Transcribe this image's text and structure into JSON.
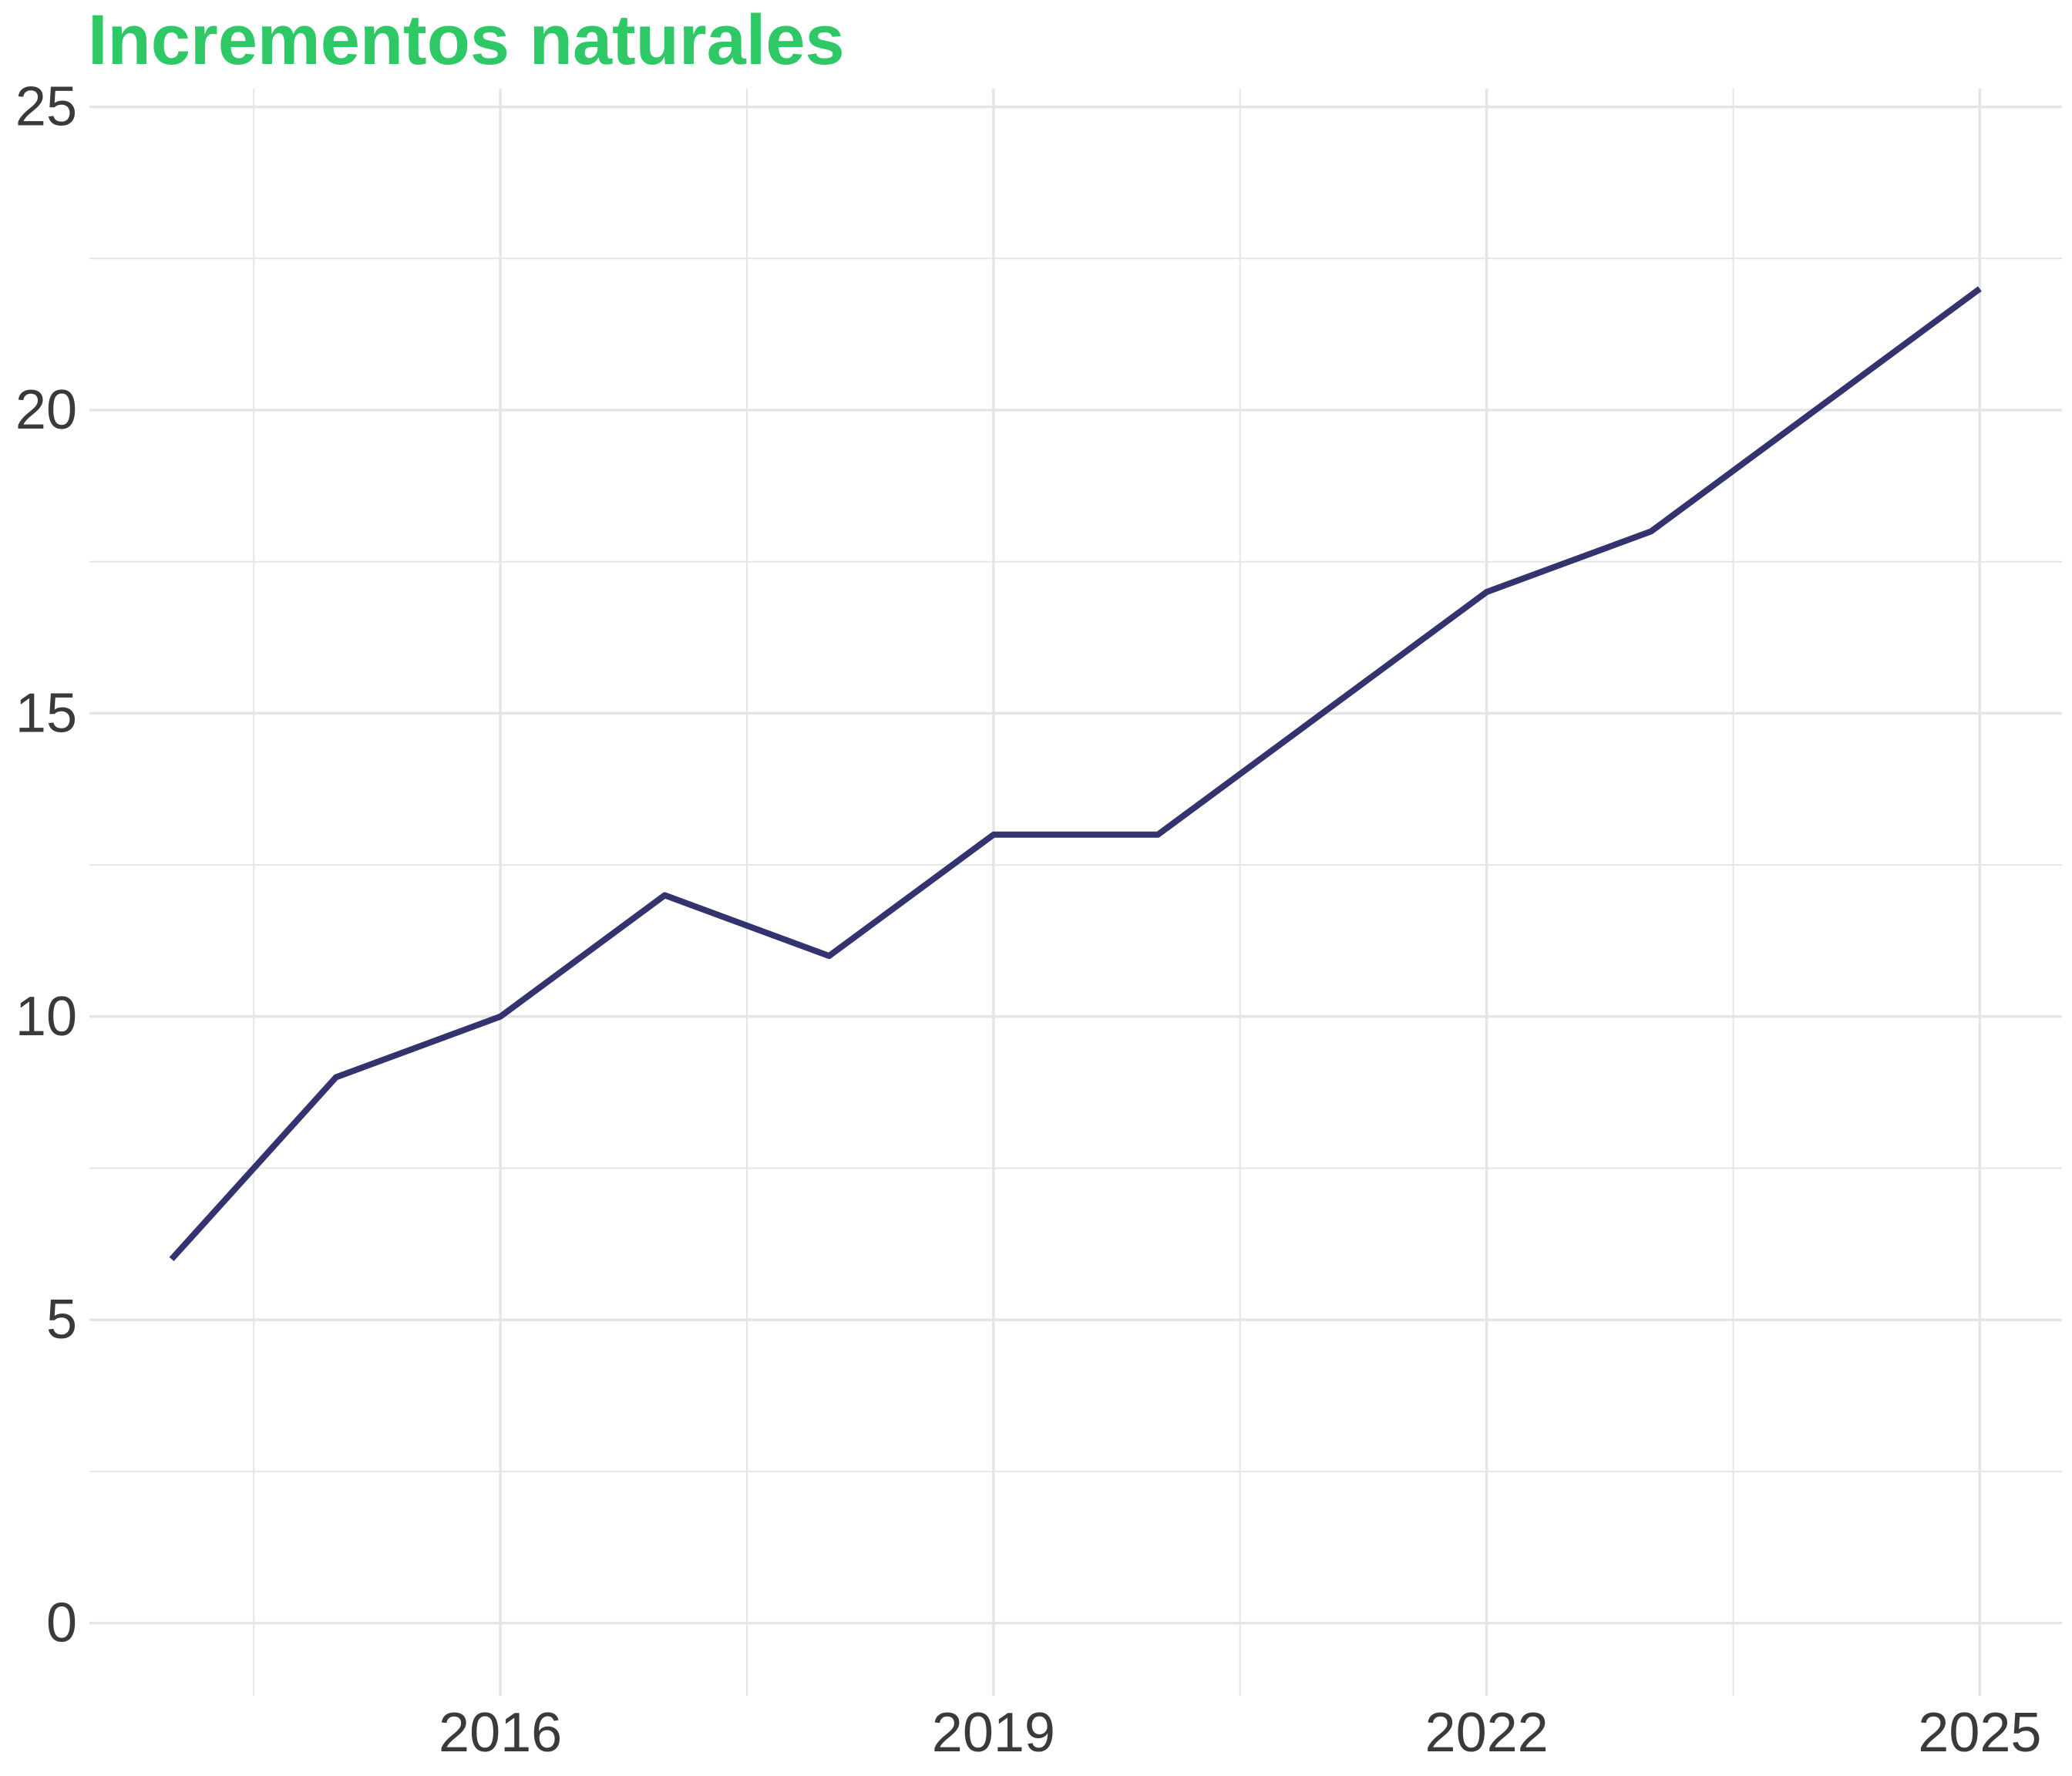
{
  "chart_data": {
    "type": "line",
    "title": "Incrementos naturales",
    "xlabel": "",
    "ylabel": "",
    "x": [
      2014.0,
      2015.0,
      2016.0,
      2017.0,
      2018.0,
      2019.0,
      2020.0,
      2021.0,
      2022.0,
      2023.0,
      2024.0,
      2025.0
    ],
    "series": [
      {
        "values": [
          6,
          9,
          10,
          12,
          11,
          13,
          13,
          15,
          17,
          18,
          20,
          22
        ]
      }
    ],
    "xlim": [
      2013.5,
      2025.5
    ],
    "ylim": [
      -1.2,
      25.3
    ],
    "x_ticks": [
      2016,
      2019,
      2022,
      2025
    ],
    "y_ticks": [
      0,
      5,
      10,
      15,
      20,
      25
    ],
    "x_ticks_minor": [
      2014.5,
      2017.5,
      2020.5,
      2023.5
    ],
    "y_ticks_minor": [
      2.5,
      7.5,
      12.5,
      17.5,
      22.5
    ],
    "grid": true,
    "legend": "none"
  },
  "colors": {
    "title": "#2ec866",
    "line": "#32336f",
    "grid": "#e5e5e5",
    "tick_text": "#3a3a3a"
  }
}
